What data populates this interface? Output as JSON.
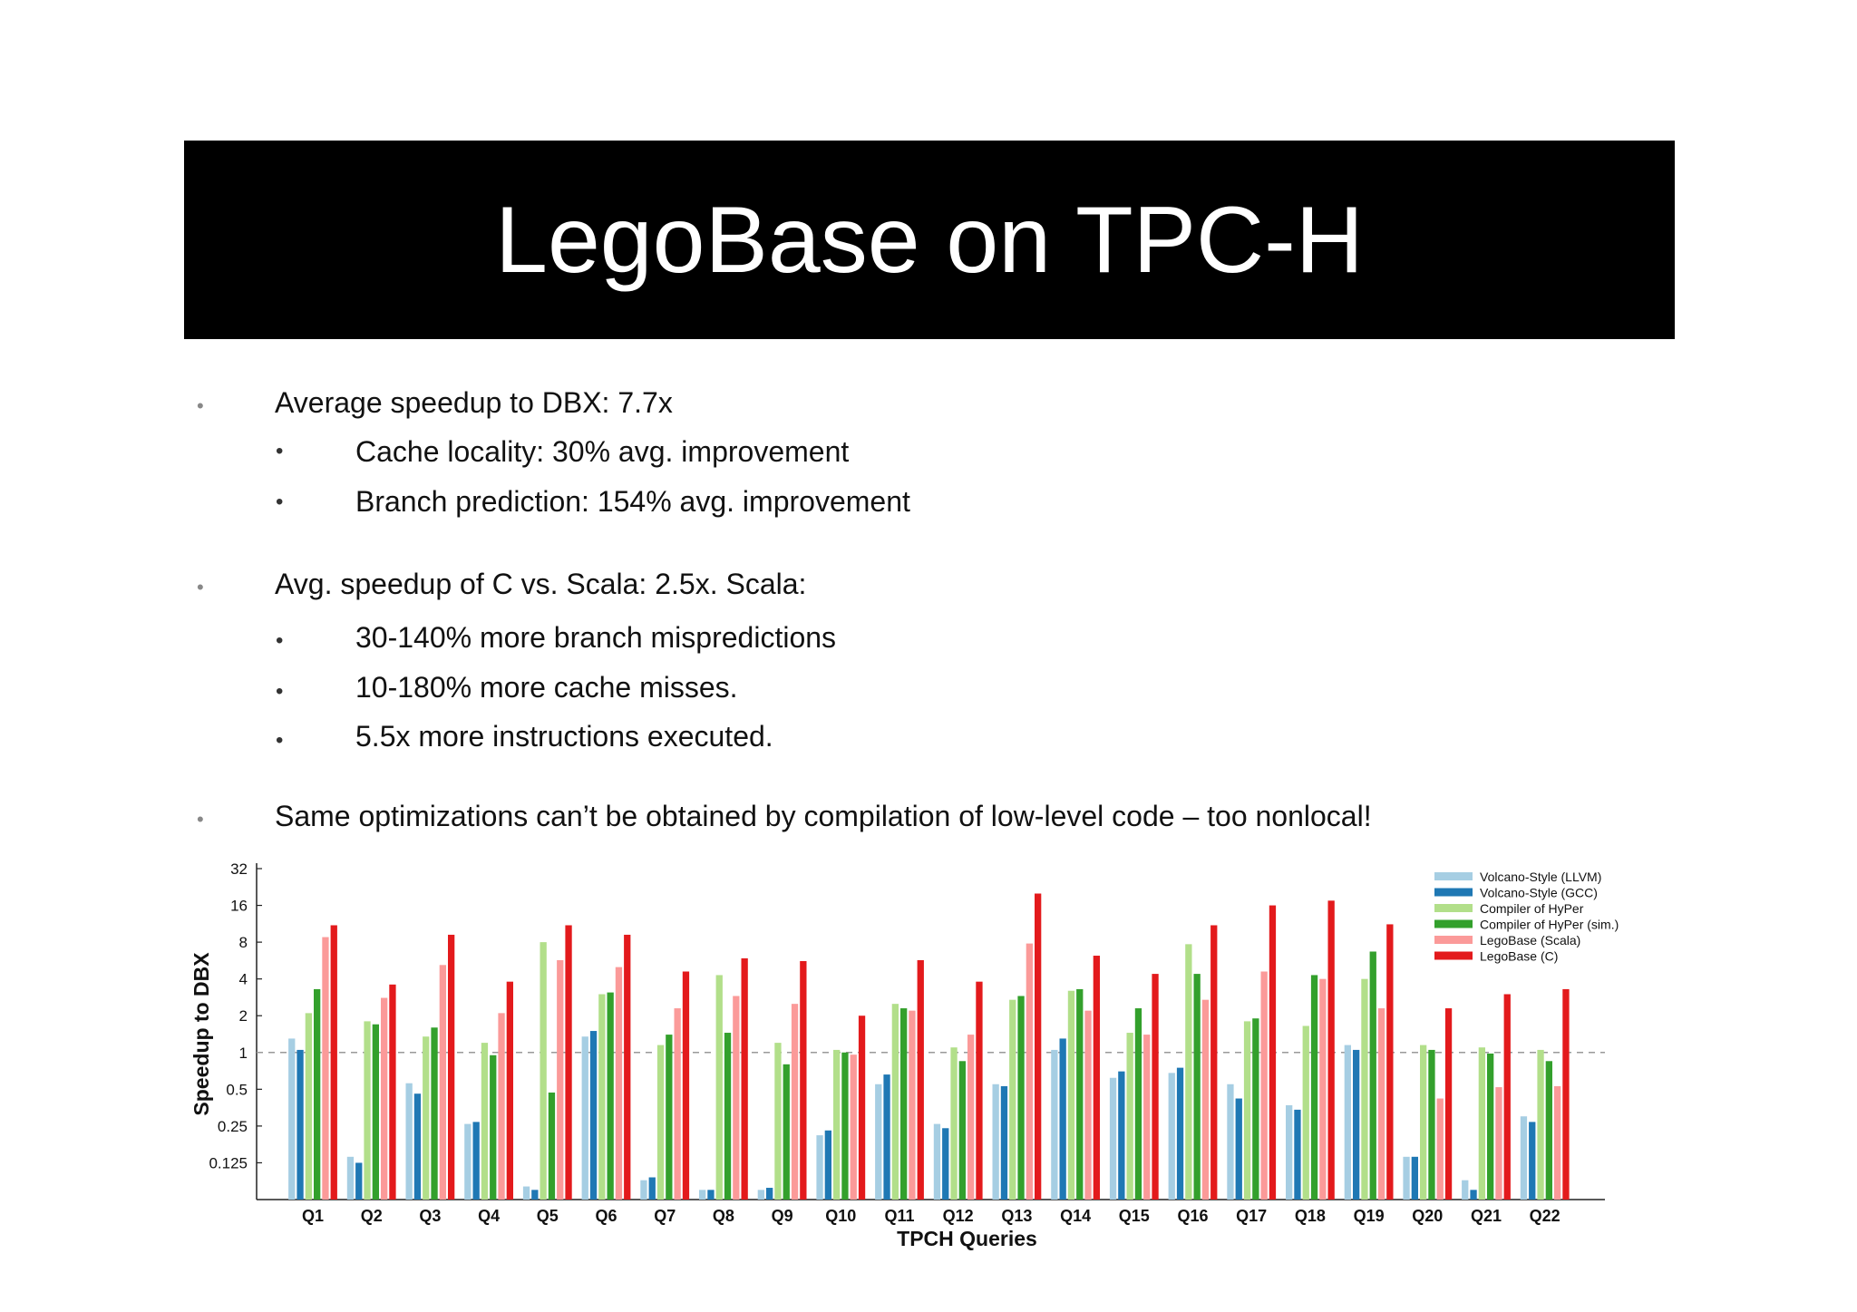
{
  "slide": {
    "title": "LegoBase on TPC-H",
    "bullets": [
      {
        "text": "Average speedup to DBX: 7.7x",
        "level": 1
      },
      {
        "text": "Cache locality: 30% avg. improvement",
        "level": 2
      },
      {
        "text": "Branch prediction: 154% avg. improvement",
        "level": 2
      },
      {
        "text": "Avg. speedup of C vs. Scala: 2.5x. Scala:",
        "level": 1
      },
      {
        "text": "30-140% more branch mispredictions",
        "level": 2
      },
      {
        "text": "10-180% more cache misses.",
        "level": 2
      },
      {
        "text": "5.5x more instructions executed.",
        "level": 2
      },
      {
        "text": "Same optimizations can’t be obtained by compilation of low-level code – too nonlocal!",
        "level": 1
      }
    ]
  },
  "chart_data": {
    "type": "bar",
    "xlabel": "TPCH Queries",
    "ylabel": "Speedup to DBX",
    "yscale": "log2",
    "ylim": [
      0.0625,
      32
    ],
    "yticks": [
      "0.125",
      "0.25",
      "0.5",
      "1",
      "2",
      "4",
      "8",
      "16",
      "32"
    ],
    "reference_line": 1,
    "legend_position": "top-right",
    "categories": [
      "Q1",
      "Q2",
      "Q3",
      "Q4",
      "Q5",
      "Q6",
      "Q7",
      "Q8",
      "Q9",
      "Q10",
      "Q11",
      "Q12",
      "Q13",
      "Q14",
      "Q15",
      "Q16",
      "Q17",
      "Q18",
      "Q19",
      "Q20",
      "Q21",
      "Q22"
    ],
    "series": [
      {
        "name": "Volcano-Style (LLVM)",
        "color": "#a6cee3",
        "values": [
          1.3,
          0.14,
          0.56,
          0.26,
          0.08,
          1.35,
          0.09,
          0.075,
          0.075,
          0.21,
          0.55,
          0.26,
          0.55,
          1.05,
          0.62,
          0.68,
          0.55,
          0.37,
          1.15,
          0.14,
          0.09,
          0.3
        ]
      },
      {
        "name": "Volcano-Style (GCC)",
        "color": "#1f78b4",
        "values": [
          1.05,
          0.125,
          0.46,
          0.27,
          0.075,
          1.5,
          0.095,
          0.075,
          0.078,
          0.23,
          0.66,
          0.24,
          0.53,
          1.3,
          0.7,
          0.75,
          0.42,
          0.34,
          1.05,
          0.14,
          0.075,
          0.27
        ]
      },
      {
        "name": "Compiler of HyPer",
        "color": "#b2df8a",
        "values": [
          2.1,
          1.8,
          1.35,
          1.2,
          8.0,
          3.0,
          1.15,
          4.3,
          1.2,
          1.05,
          2.5,
          1.1,
          2.7,
          3.2,
          1.45,
          7.7,
          1.8,
          1.65,
          4.0,
          1.15,
          1.1,
          1.05
        ]
      },
      {
        "name": "Compiler of HyPer (sim.)",
        "color": "#33a02c",
        "values": [
          3.3,
          1.7,
          1.6,
          0.95,
          0.47,
          3.1,
          1.4,
          1.45,
          0.8,
          1.0,
          2.3,
          0.85,
          2.9,
          3.3,
          2.3,
          4.4,
          1.9,
          4.3,
          6.7,
          1.05,
          0.98,
          0.85
        ]
      },
      {
        "name": "LegoBase (Scala)",
        "color": "#fb9a99",
        "values": [
          8.8,
          2.8,
          5.2,
          2.1,
          5.7,
          5.0,
          2.3,
          2.9,
          2.5,
          0.96,
          2.2,
          1.4,
          7.8,
          2.2,
          1.4,
          2.7,
          4.6,
          4.0,
          2.3,
          0.42,
          0.52,
          0.53
        ]
      },
      {
        "name": "LegoBase (C)",
        "color": "#e31a1c",
        "values": [
          11,
          3.6,
          9.2,
          3.8,
          11,
          9.2,
          4.6,
          5.9,
          5.6,
          2.0,
          5.7,
          3.8,
          20,
          6.2,
          4.4,
          11,
          16,
          17.5,
          11.2,
          2.3,
          3.0,
          3.3
        ]
      }
    ]
  }
}
